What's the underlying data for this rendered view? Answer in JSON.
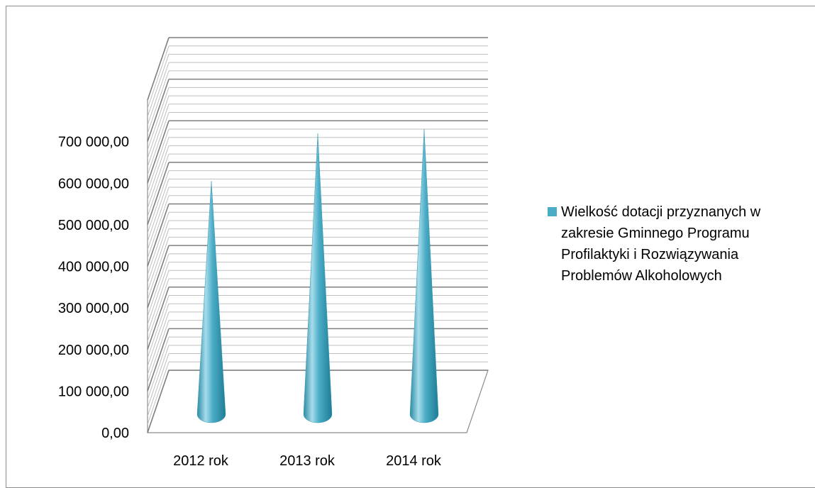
{
  "colors": {
    "series": "#4bacc6",
    "series_dark": "#1f7c94",
    "series_light": "#a6dceb",
    "grid_major": "#7f7f7f",
    "grid_minor": "#bfbfbf",
    "frame": "#8c8c8c"
  },
  "chart_data": {
    "type": "bar",
    "subtype": "3d-cone",
    "title": "",
    "categories": [
      "2012 rok",
      "2013 rok",
      "2014 rok"
    ],
    "series": [
      {
        "name": "Wielkość dotacji przyznanych w zakresie Gminnego Programu Profilaktyki i Rozwiązywania Problemów Alkoholowych",
        "values": [
          530000,
          645000,
          655000
        ]
      }
    ],
    "y_ticks": [
      "0,00",
      "100 000,00",
      "200 000,00",
      "300 000,00",
      "400 000,00",
      "500 000,00",
      "600 000,00",
      "700 000,00"
    ],
    "ylim": [
      0,
      800000
    ],
    "gridlines": true,
    "legend_position": "right"
  }
}
